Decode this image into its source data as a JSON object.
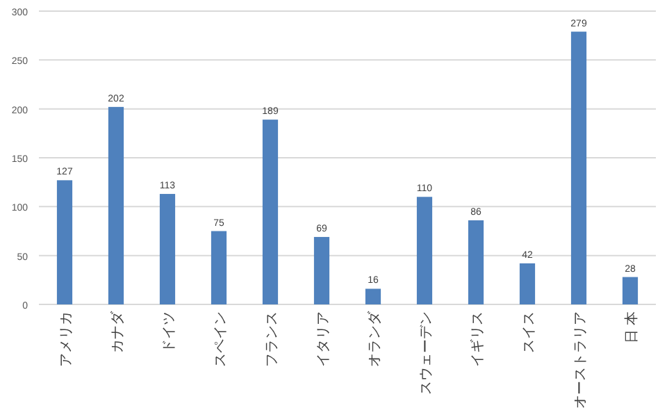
{
  "chart_data": {
    "type": "bar",
    "categories": [
      "アメリカ",
      "カナダ",
      "ドイツ",
      "スペイン",
      "フランス",
      "イタリア",
      "オランダ",
      "スウェーデン",
      "イギリス",
      "スイス",
      "オーストラリア",
      "日 本"
    ],
    "values": [
      127,
      202,
      113,
      75,
      189,
      69,
      16,
      110,
      86,
      42,
      279,
      28
    ],
    "color": "#4f81bd",
    "ylim": [
      0,
      300
    ],
    "yticks": [
      0,
      50,
      100,
      150,
      200,
      250,
      300
    ],
    "grid": "y",
    "data_labels": true
  }
}
